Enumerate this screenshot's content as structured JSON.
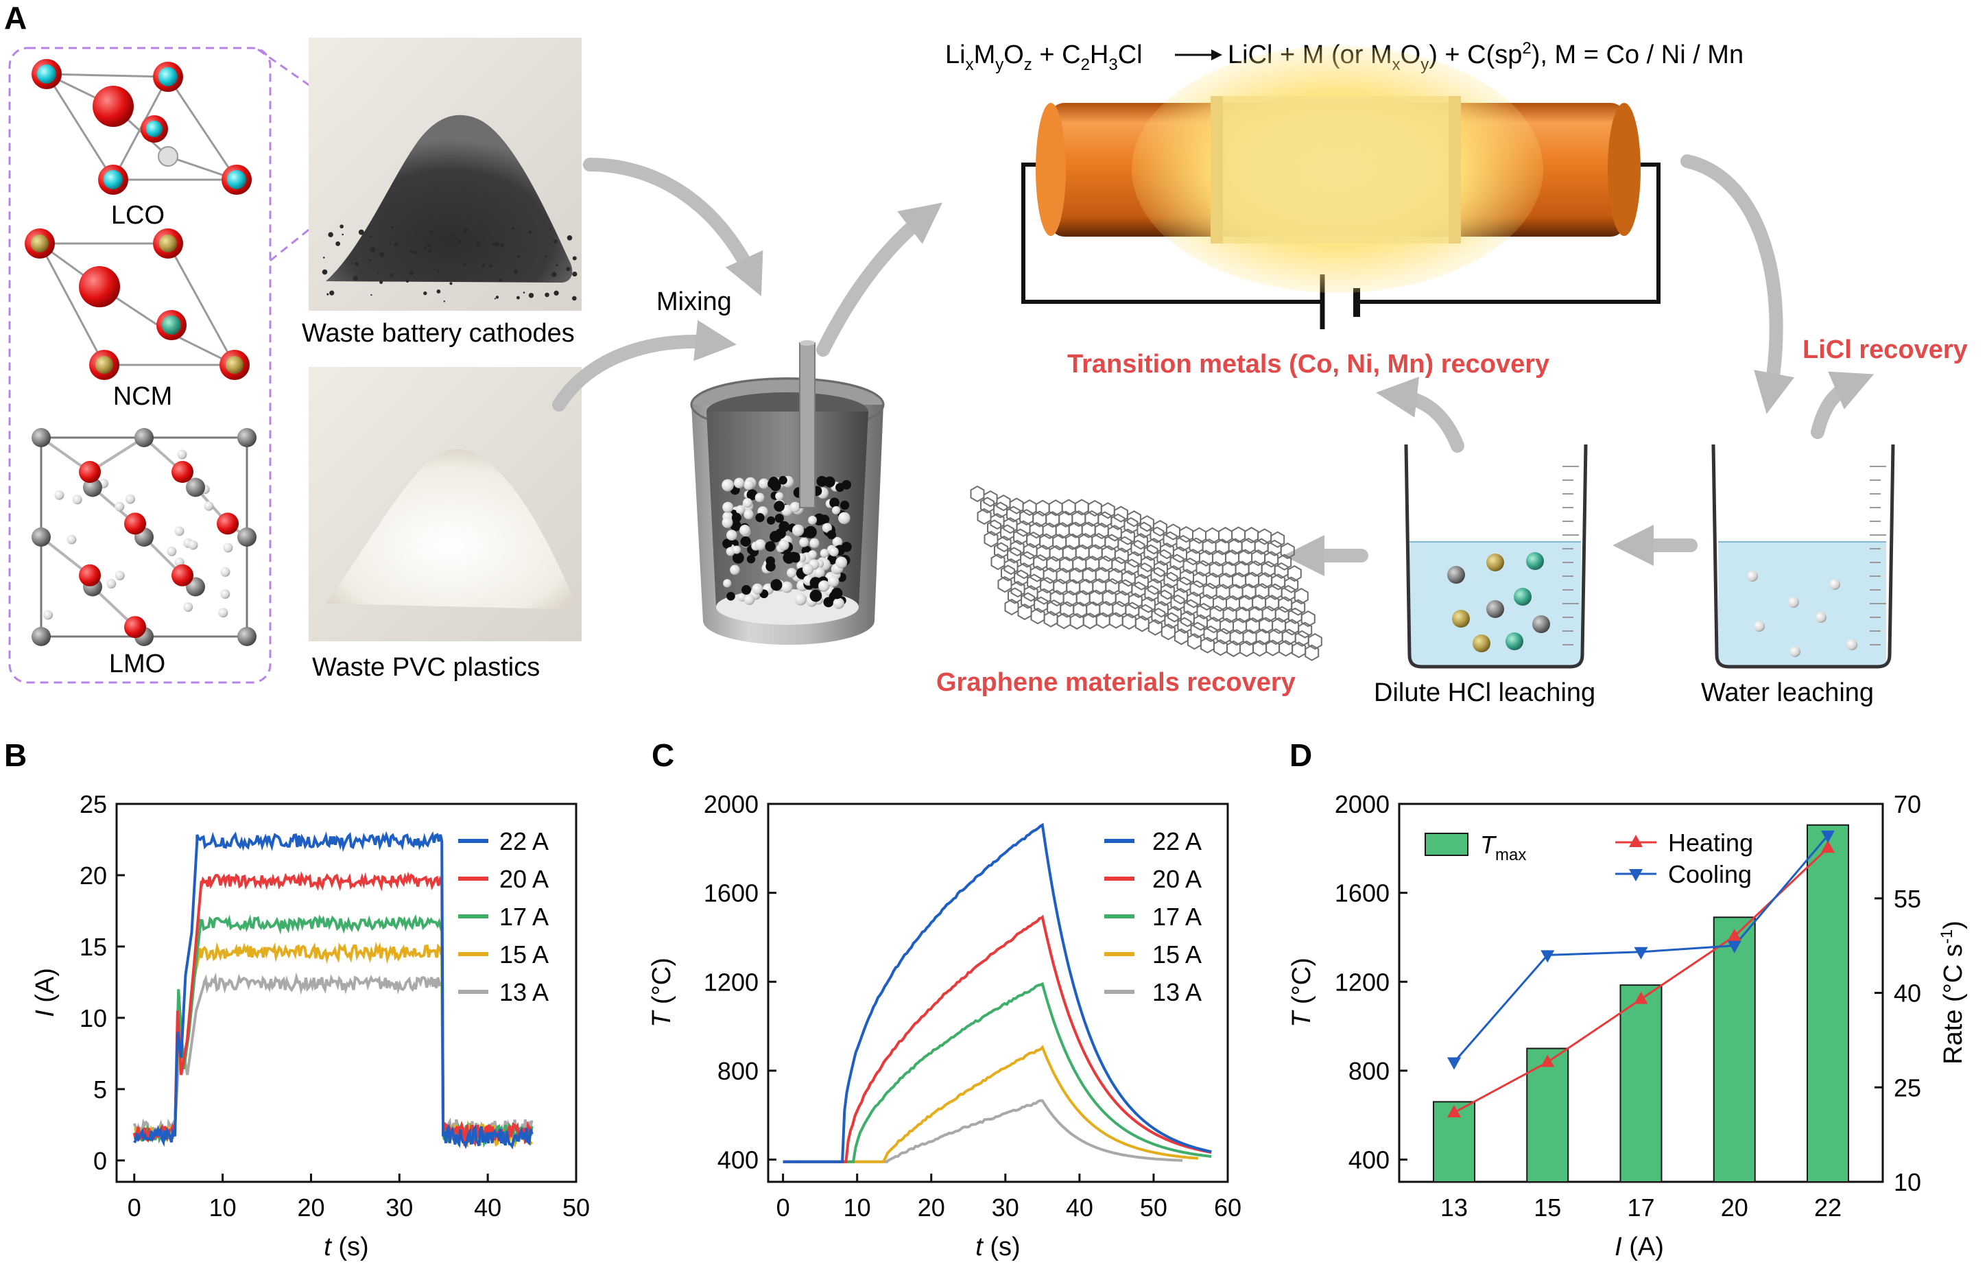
{
  "panel_a": {
    "letter": "A",
    "crystal_labels": [
      "LCO",
      "NCM",
      "LMO"
    ],
    "waste_cathodes_caption": "Waste battery cathodes",
    "waste_pvc_caption": "Waste PVC plastics",
    "mixing_label": "Mixing",
    "equation": {
      "reactant": "Li",
      "r_sub_x": "x",
      "r_m": "M",
      "r_sub_y": "y",
      "r_o": "O",
      "r_sub_z": "z",
      "plus1": " + ",
      "c": "C",
      "c_sub2": "2",
      "h": "H",
      "h_sub3": "3",
      "cl": "Cl",
      "products_a": "LiCl + M (or M",
      "p_sub_x": "x",
      "p_o": "O",
      "p_sub_y": "y",
      "products_b": ") + C(sp",
      "p_sup2": "2",
      "products_c": "),  M = Co / Ni / Mn"
    },
    "tm_recovery": "Transition metals (Co, Ni, Mn) recovery",
    "licl_recovery": "LiCl recovery",
    "graphene_recovery": "Graphene materials recovery",
    "hcl_caption": "Dilute HCl leaching",
    "water_caption": "Water leaching"
  },
  "panel_b": {
    "letter": "B"
  },
  "panel_c": {
    "letter": "C"
  },
  "panel_d": {
    "letter": "D"
  },
  "colors": {
    "i22": "#1f5fc4",
    "i20": "#e8393b",
    "i17": "#3fae6a",
    "i15": "#e4ad1d",
    "i13": "#a9a9a9",
    "bar": "#4dbf7a",
    "heating": "#e8393b",
    "cooling": "#1f5fc4",
    "recovery_text": "#e24a4a"
  },
  "chart_data": [
    {
      "id": "B",
      "type": "line",
      "xlabel_var": "t",
      "xlabel_unit": " (s)",
      "ylabel_var": "I",
      "ylabel_unit": " (A)",
      "xlim": [
        -2,
        50
      ],
      "ylim": [
        -1.5,
        25
      ],
      "xticks": [
        0,
        10,
        20,
        30,
        40,
        50
      ],
      "yticks": [
        0,
        5,
        10,
        15,
        20,
        25
      ],
      "legend": "top-right",
      "series": [
        {
          "name": "22 A",
          "key": "i22",
          "pre": 1.7,
          "plateau": 22.4,
          "noise": 0.45,
          "step": [
            [
              4.6,
              1.7
            ],
            [
              4.9,
              9.0
            ],
            [
              5.3,
              7.2
            ],
            [
              5.8,
              13.0
            ],
            [
              6.5,
              16.0
            ],
            [
              7.1,
              22.4
            ]
          ],
          "t_on": 7.1,
          "t_off": 34.8,
          "end": 45
        },
        {
          "name": "20 A",
          "key": "i20",
          "pre": 1.9,
          "plateau": 19.6,
          "noise": 0.4,
          "step": [
            [
              4.6,
              1.9
            ],
            [
              4.9,
              10.5
            ],
            [
              5.3,
              6.0
            ],
            [
              6.0,
              8.5
            ],
            [
              6.8,
              14.0
            ],
            [
              7.6,
              19.6
            ]
          ],
          "t_on": 7.6,
          "t_off": 34.8,
          "end": 45
        },
        {
          "name": "17 A",
          "key": "i17",
          "pre": 1.8,
          "plateau": 16.6,
          "noise": 0.4,
          "step": [
            [
              4.6,
              1.8
            ],
            [
              5.0,
              12.0
            ],
            [
              5.6,
              6.4
            ],
            [
              6.2,
              9.0
            ],
            [
              7.0,
              14.0
            ],
            [
              7.5,
              16.6
            ]
          ],
          "t_on": 7.5,
          "t_off": 34.8,
          "end": 45
        },
        {
          "name": "15 A",
          "key": "i15",
          "pre": 1.8,
          "plateau": 14.6,
          "noise": 0.45,
          "step": [
            [
              4.6,
              1.8
            ],
            [
              5.0,
              9.0
            ],
            [
              5.7,
              6.5
            ],
            [
              6.5,
              12.0
            ],
            [
              7.4,
              14.6
            ]
          ],
          "t_on": 7.4,
          "t_off": 34.8,
          "end": 45
        },
        {
          "name": "13 A",
          "key": "i13",
          "pre": 2.2,
          "plateau": 12.4,
          "noise": 0.45,
          "step": [
            [
              4.6,
              2.2
            ],
            [
              5.2,
              9.0
            ],
            [
              6.0,
              6.0
            ],
            [
              7.0,
              10.5
            ],
            [
              7.9,
              12.4
            ]
          ],
          "t_on": 7.9,
          "t_off": 34.8,
          "end": 45
        }
      ]
    },
    {
      "id": "C",
      "type": "line",
      "xlabel_var": "t",
      "xlabel_unit": " (s)",
      "ylabel_var": "T",
      "ylabel_unit": " (°C)",
      "xlim": [
        -2,
        60
      ],
      "ylim": [
        300,
        2000
      ],
      "xticks": [
        0,
        10,
        20,
        30,
        40,
        50,
        60
      ],
      "yticks": [
        400,
        800,
        1200,
        1600,
        2000
      ],
      "legend": "top-right",
      "series": [
        {
          "name": "22 A",
          "key": "i22",
          "t_start": 8.0,
          "t_peak": 35.0,
          "peak": 1905,
          "shape": 0.42,
          "t_end": 58,
          "decay": 6.5
        },
        {
          "name": "20 A",
          "key": "i20",
          "t_start": 8.5,
          "t_peak": 35.0,
          "peak": 1490,
          "shape": 0.55,
          "t_end": 58,
          "decay": 7.0
        },
        {
          "name": "17 A",
          "key": "i17",
          "t_start": 9.5,
          "t_peak": 35.0,
          "peak": 1190,
          "shape": 0.55,
          "t_end": 58,
          "decay": 6.5
        },
        {
          "name": "15 A",
          "key": "i15",
          "t_start": 13.5,
          "t_peak": 35.0,
          "peak": 905,
          "shape": 0.75,
          "t_end": 56,
          "decay": 6.0
        },
        {
          "name": "13 A",
          "key": "i13",
          "t_start": 14.0,
          "t_peak": 35.0,
          "peak": 665,
          "shape": 0.85,
          "t_end": 54,
          "decay": 5.0
        }
      ],
      "baseline": 390
    },
    {
      "id": "D",
      "type": "bar",
      "categories": [
        "13",
        "15",
        "17",
        "20",
        "22"
      ],
      "tmax": [
        660,
        900,
        1185,
        1490,
        1905
      ],
      "heating": [
        21,
        29,
        39,
        49,
        63
      ],
      "cooling": [
        29,
        46,
        46.5,
        47.5,
        65
      ],
      "xlabel_var": "I",
      "xlabel_unit": " (A)",
      "ylabel_var": "T",
      "ylabel_unit": " (°C)",
      "y2label": "Rate (°C s",
      "y2label_sup": "-1",
      "y2label_end": ")",
      "ylim": [
        300,
        2000
      ],
      "y2lim": [
        10,
        70
      ],
      "yticks": [
        400,
        800,
        1200,
        1600,
        2000
      ],
      "y2ticks": [
        10,
        25,
        40,
        55,
        70
      ],
      "legend_bar_var": "T",
      "legend_bar_sub": "max",
      "legend_heating": "Heating",
      "legend_cooling": "Cooling"
    }
  ]
}
